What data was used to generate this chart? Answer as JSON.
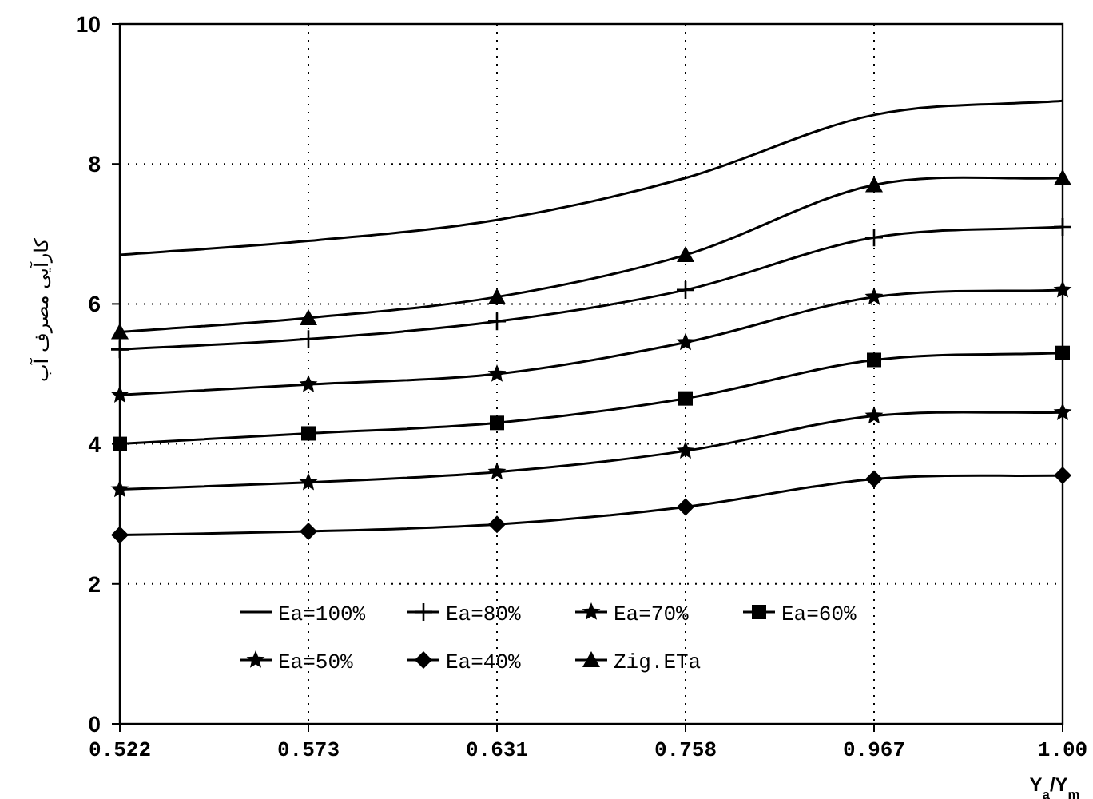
{
  "chart_data": {
    "type": "line",
    "ylabel": "کارآیی مصرف آب",
    "xlabel": "Y$_{a}$/Y$_{m}$",
    "categories": [
      "0.522",
      "0.573",
      "0.631",
      "0.758",
      "0.967",
      "1.00"
    ],
    "ylim": [
      0,
      10
    ],
    "yticks": [
      0,
      2,
      4,
      6,
      8,
      10
    ],
    "grid": true,
    "legend": "bottom",
    "line_style": "solid",
    "series": [
      {
        "name": "Ea=100%",
        "color": "#000000",
        "marker": "none",
        "values": [
          6.7,
          6.9,
          7.2,
          7.8,
          8.7,
          8.9
        ]
      },
      {
        "name": "Ea=80%",
        "color": "#000000",
        "marker": "cross",
        "values": [
          5.35,
          5.5,
          5.75,
          6.2,
          6.95,
          7.1
        ]
      },
      {
        "name": "Ea=70%",
        "color": "#000000",
        "marker": "star",
        "values": [
          4.7,
          4.85,
          5.0,
          5.45,
          6.1,
          6.2
        ]
      },
      {
        "name": "Ea=60%",
        "color": "#000000",
        "marker": "square",
        "values": [
          4.0,
          4.15,
          4.3,
          4.65,
          5.2,
          5.3
        ]
      },
      {
        "name": "Ea=50%",
        "color": "#000000",
        "marker": "star",
        "values": [
          3.35,
          3.45,
          3.6,
          3.9,
          4.4,
          4.45
        ]
      },
      {
        "name": "Ea=40%",
        "color": "#000000",
        "marker": "diamond",
        "values": [
          2.7,
          2.75,
          2.85,
          3.1,
          3.5,
          3.55
        ]
      },
      {
        "name": "Zig.ETa",
        "color": "#000000",
        "marker": "triangle",
        "values": [
          5.6,
          5.8,
          6.1,
          6.7,
          7.7,
          7.8
        ]
      }
    ]
  }
}
